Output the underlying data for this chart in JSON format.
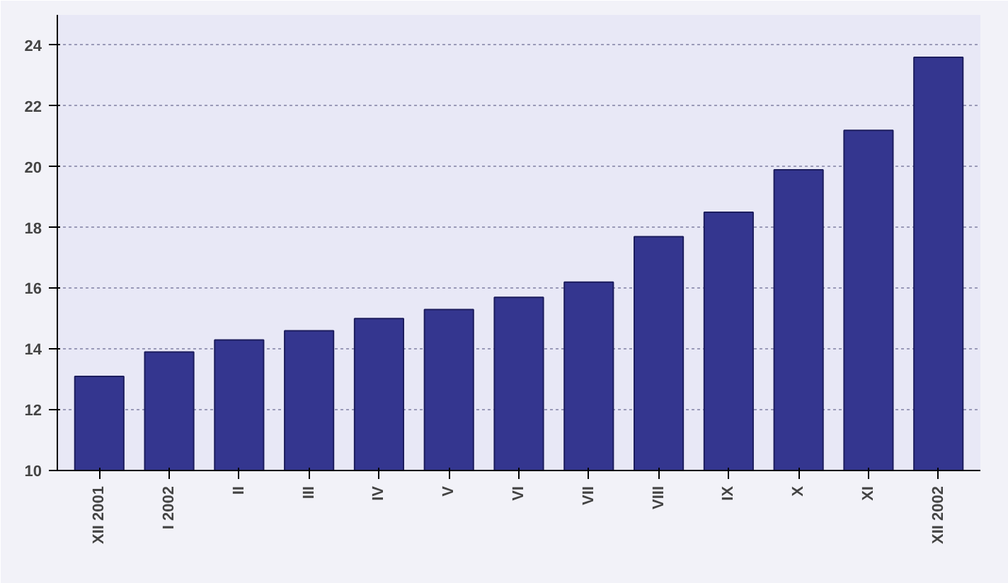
{
  "chart_data": {
    "type": "bar",
    "categories": [
      "XII 2001",
      "I 2002",
      "II",
      "III",
      "IV",
      "V",
      "VI",
      "VII",
      "VIII",
      "IX",
      "X",
      "XI",
      "XII 2002"
    ],
    "values": [
      13.1,
      13.9,
      14.3,
      14.6,
      15.0,
      15.3,
      15.7,
      16.2,
      17.7,
      18.5,
      19.9,
      21.2,
      23.6
    ],
    "color": "#34368f",
    "ylim": [
      10,
      25
    ],
    "yticks": [
      10,
      12,
      14,
      16,
      18,
      20,
      22,
      24
    ],
    "grid": "y"
  }
}
